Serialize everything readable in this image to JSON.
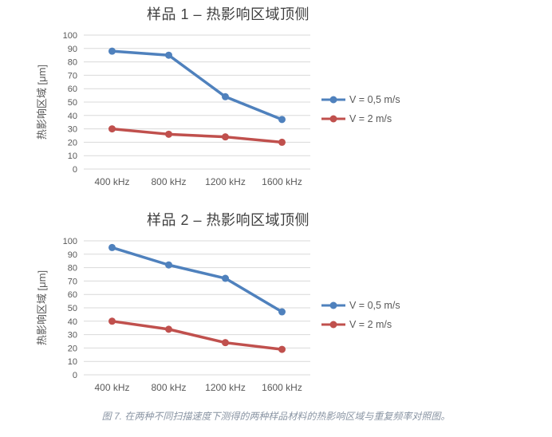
{
  "colors": {
    "series_blue": "#4f81bd",
    "series_red": "#c0504d",
    "gridline": "#d9d9d9",
    "tick_label": "#595959",
    "title_text": "#3f3f3f",
    "caption_text": "#8994a3"
  },
  "caption": "图 7. 在两种不同扫描速度下测得的两种样品材料的热影响区域与重复频率对照图。",
  "chart_data": [
    {
      "type": "line",
      "title": "样品 1 – 热影响区域顶侧",
      "xlabel": "",
      "ylabel": "热影响区域 [μm]",
      "categories": [
        "400 kHz",
        "800 kHz",
        "1200 kHz",
        "1600 kHz"
      ],
      "series": [
        {
          "name": "V = 0,5 m/s",
          "color": "#4f81bd",
          "values": [
            88,
            85,
            54,
            37
          ]
        },
        {
          "name": "V = 2 m/s",
          "color": "#c0504d",
          "values": [
            30,
            26,
            24,
            20
          ]
        }
      ],
      "ylim": [
        0,
        100
      ],
      "ytick_step": 10,
      "grid": true,
      "legend_position": "right"
    },
    {
      "type": "line",
      "title": "样品 2 – 热影响区域顶侧",
      "xlabel": "",
      "ylabel": "热影响区域 [μm]",
      "categories": [
        "400 kHz",
        "800 kHz",
        "1200 kHz",
        "1600 kHz"
      ],
      "series": [
        {
          "name": "V = 0,5 m/s",
          "color": "#4f81bd",
          "values": [
            95,
            82,
            72,
            47
          ]
        },
        {
          "name": "V = 2 m/s",
          "color": "#c0504d",
          "values": [
            40,
            34,
            24,
            19
          ]
        }
      ],
      "ylim": [
        0,
        100
      ],
      "ytick_step": 10,
      "grid": true,
      "legend_position": "right"
    }
  ]
}
